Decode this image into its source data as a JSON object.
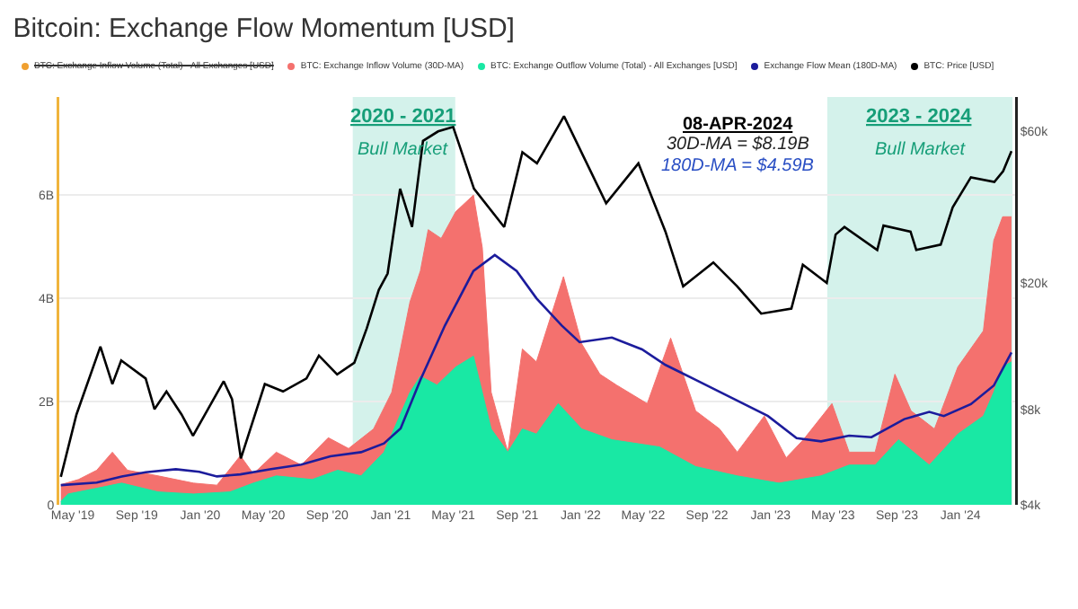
{
  "chart_data": {
    "type": "line",
    "title": "Bitcoin: Exchange Flow Momentum [USD]",
    "xlim": [
      "2019-04-05",
      "2024-04-15"
    ],
    "xticks": [
      {
        "value": "2019-05-01",
        "label": "May '19"
      },
      {
        "value": "2019-09-01",
        "label": "Sep '19"
      },
      {
        "value": "2020-01-01",
        "label": "Jan '20"
      },
      {
        "value": "2020-05-01",
        "label": "May '20"
      },
      {
        "value": "2020-09-01",
        "label": "Sep '20"
      },
      {
        "value": "2021-01-01",
        "label": "Jan '21"
      },
      {
        "value": "2021-05-01",
        "label": "May '21"
      },
      {
        "value": "2021-09-01",
        "label": "Sep '21"
      },
      {
        "value": "2022-01-01",
        "label": "Jan '22"
      },
      {
        "value": "2022-05-01",
        "label": "May '22"
      },
      {
        "value": "2022-09-01",
        "label": "Sep '22"
      },
      {
        "value": "2023-01-01",
        "label": "Jan '23"
      },
      {
        "value": "2023-05-01",
        "label": "May '23"
      },
      {
        "value": "2023-09-01",
        "label": "Sep '23"
      },
      {
        "value": "2024-01-01",
        "label": "Jan '24"
      }
    ],
    "ylim": [
      0,
      7.9
    ],
    "yticks": [
      0,
      {
        "value": 2,
        "label": "2B"
      },
      {
        "value": 4,
        "label": "4B"
      },
      {
        "value": 6,
        "label": "6B"
      }
    ],
    "y2lim": [
      4000,
      77000
    ],
    "y2ticks": [
      {
        "value": 4000,
        "label": "$4k"
      },
      {
        "value": 8000,
        "label": "$8k"
      },
      {
        "value": 20000,
        "label": "$20k"
      },
      {
        "value": 60000,
        "label": "$60k"
      }
    ],
    "log": "y2",
    "grid": "y",
    "legend": "top",
    "bands": [
      {
        "axis": "x",
        "from": "2020-10-20",
        "to": "2021-05-05",
        "label": "2020 - 2021\nBull Market",
        "color": "#d4f2eb"
      },
      {
        "axis": "x",
        "from": "2023-04-20",
        "to": "2024-04-10",
        "label": "2023 - 2024\nBull Market",
        "color": "#d4f2eb"
      }
    ],
    "annotations": [
      "08-APR-2024",
      "30D-MA = $8.19B",
      "180D-MA = $4.59B"
    ],
    "series": [
      {
        "name": "BTC: Exchange Inflow Volume (Total) - All Exchanges [USD]",
        "color": "#f0a030",
        "values": [
          null
        ]
      },
      {
        "name": "BTC: Exchange Inflow Volume (30D-MA)",
        "color": "#f4716e",
        "type": "area",
        "x": [
          "2019-04-08",
          "2019-05-12",
          "2019-06-16",
          "2019-07-16",
          "2019-08-14",
          "2019-10-12",
          "2019-12-19",
          "2020-02-02",
          "2020-03-18",
          "2020-04-12",
          "2020-05-26",
          "2020-07-13",
          "2020-09-03",
          "2020-10-12",
          "2020-11-29",
          "2021-01-03",
          "2021-02-07",
          "2021-02-27",
          "2021-03-14",
          "2021-04-08",
          "2021-05-06",
          "2021-06-09",
          "2021-06-26",
          "2021-07-13",
          "2021-08-14",
          "2021-09-11",
          "2021-10-08",
          "2021-11-29",
          "2022-01-03",
          "2022-02-07",
          "2022-03-11",
          "2022-05-09",
          "2022-06-23",
          "2022-08-10",
          "2022-09-25",
          "2022-10-29",
          "2022-12-20",
          "2023-01-31",
          "2023-03-05",
          "2023-04-29",
          "2023-06-01",
          "2023-07-21",
          "2023-08-28",
          "2023-09-28",
          "2023-11-12",
          "2023-12-27",
          "2024-02-14",
          "2024-03-05",
          "2024-03-22",
          "2024-04-08"
        ],
        "values": [
          0.39,
          0.49,
          0.67,
          1.02,
          0.67,
          0.56,
          0.42,
          0.38,
          0.95,
          0.6,
          1.02,
          0.77,
          1.3,
          1.09,
          1.47,
          2.18,
          3.93,
          4.53,
          5.33,
          5.16,
          5.68,
          6.0,
          4.98,
          2.18,
          1.02,
          3.02,
          2.77,
          4.42,
          3.12,
          2.53,
          2.32,
          1.96,
          3.23,
          1.82,
          1.47,
          1.02,
          1.72,
          0.91,
          1.26,
          1.96,
          1.02,
          1.02,
          2.53,
          1.82,
          1.47,
          2.67,
          3.37,
          5.12,
          5.58,
          5.58
        ]
      },
      {
        "name": "BTC: Exchange Outflow Volume (Total) - All Exchanges [USD]",
        "color": "#19e8a4",
        "type": "area",
        "x": [
          "2019-04-08",
          "2019-04-22",
          "2019-06-16",
          "2019-08-03",
          "2019-10-12",
          "2019-12-19",
          "2020-02-27",
          "2020-04-12",
          "2020-05-26",
          "2020-08-03",
          "2020-09-21",
          "2020-11-05",
          "2020-12-19",
          "2021-02-07",
          "2021-02-27",
          "2021-03-31",
          "2021-05-06",
          "2021-06-09",
          "2021-07-13",
          "2021-08-14",
          "2021-09-11",
          "2021-10-08",
          "2021-11-19",
          "2022-01-03",
          "2022-03-02",
          "2022-06-02",
          "2022-08-10",
          "2022-10-29",
          "2023-01-17",
          "2023-04-08",
          "2023-06-01",
          "2023-07-21",
          "2023-09-04",
          "2023-11-02",
          "2023-12-27",
          "2024-02-14",
          "2024-03-05",
          "2024-03-22",
          "2024-04-08"
        ],
        "values": [
          0.07,
          0.21,
          0.32,
          0.42,
          0.25,
          0.21,
          0.25,
          0.42,
          0.56,
          0.49,
          0.67,
          0.56,
          1.02,
          2.18,
          2.49,
          2.32,
          2.67,
          2.88,
          1.47,
          1.02,
          1.47,
          1.37,
          1.96,
          1.47,
          1.26,
          1.12,
          0.74,
          0.56,
          0.42,
          0.56,
          0.77,
          0.77,
          1.26,
          0.77,
          1.37,
          1.72,
          2.18,
          2.67,
          2.77
        ]
      },
      {
        "name": "Exchange Flow Mean (180D-MA)",
        "color": "#1c1c9c",
        "x": [
          "2019-04-08",
          "2019-06-16",
          "2019-08-03",
          "2019-09-18",
          "2019-11-15",
          "2019-12-30",
          "2020-02-02",
          "2020-03-18",
          "2020-05-16",
          "2020-07-13",
          "2020-09-07",
          "2020-11-05",
          "2020-12-19",
          "2021-01-20",
          "2021-02-27",
          "2021-04-15",
          "2021-06-09",
          "2021-07-20",
          "2021-08-31",
          "2021-10-08",
          "2021-11-26",
          "2021-12-30",
          "2022-03-02",
          "2022-04-29",
          "2022-06-13",
          "2022-08-10",
          "2022-10-19",
          "2022-12-27",
          "2023-02-20",
          "2023-04-08",
          "2023-06-01",
          "2023-07-14",
          "2023-09-15",
          "2023-11-02",
          "2023-11-30",
          "2024-01-21",
          "2024-03-05",
          "2024-04-08"
        ],
        "values": [
          0.38,
          0.43,
          0.55,
          0.63,
          0.69,
          0.64,
          0.55,
          0.59,
          0.69,
          0.78,
          0.94,
          1.02,
          1.19,
          1.48,
          2.42,
          3.47,
          4.53,
          4.84,
          4.53,
          4.0,
          3.47,
          3.15,
          3.24,
          3.01,
          2.71,
          2.42,
          2.07,
          1.72,
          1.29,
          1.23,
          1.34,
          1.31,
          1.66,
          1.8,
          1.72,
          1.95,
          2.31,
          2.95
        ]
      },
      {
        "name": "BTC: Price [USD]",
        "color": "#000000",
        "axis": "y2",
        "x": [
          "2019-04-08",
          "2019-05-08",
          "2019-06-23",
          "2019-07-16",
          "2019-08-02",
          "2019-09-18",
          "2019-10-05",
          "2019-10-28",
          "2019-11-26",
          "2019-12-18",
          "2020-02-15",
          "2020-03-02",
          "2020-03-19",
          "2020-05-04",
          "2020-06-08",
          "2020-07-23",
          "2020-08-16",
          "2020-09-20",
          "2020-10-23",
          "2020-11-16",
          "2020-12-09",
          "2020-12-26",
          "2021-01-19",
          "2021-02-11",
          "2021-03-04",
          "2021-04-02",
          "2021-05-01",
          "2021-06-10",
          "2021-08-07",
          "2021-09-11",
          "2021-10-09",
          "2021-11-30",
          "2022-02-19",
          "2022-04-22",
          "2022-06-13",
          "2022-07-17",
          "2022-09-13",
          "2022-10-29",
          "2022-12-14",
          "2023-02-10",
          "2023-03-04",
          "2023-04-19",
          "2023-05-06",
          "2023-05-23",
          "2023-07-25",
          "2023-08-06",
          "2023-09-27",
          "2023-10-08",
          "2023-11-24",
          "2023-12-17",
          "2024-01-21",
          "2024-03-06",
          "2024-03-23",
          "2024-04-08"
        ],
        "values": [
          4900,
          7700,
          12600,
          9600,
          11400,
          10000,
          8000,
          9100,
          7700,
          6600,
          9800,
          8600,
          5600,
          9600,
          9100,
          10000,
          11800,
          10300,
          11200,
          14400,
          19000,
          21400,
          39600,
          30000,
          56000,
          60000,
          62000,
          39600,
          30000,
          51600,
          47600,
          67000,
          35600,
          47600,
          29000,
          19500,
          23200,
          19500,
          16000,
          16600,
          22800,
          20000,
          28400,
          30000,
          25400,
          30300,
          29000,
          25400,
          26400,
          34600,
          43000,
          41600,
          45000,
          52000
        ]
      }
    ]
  }
}
